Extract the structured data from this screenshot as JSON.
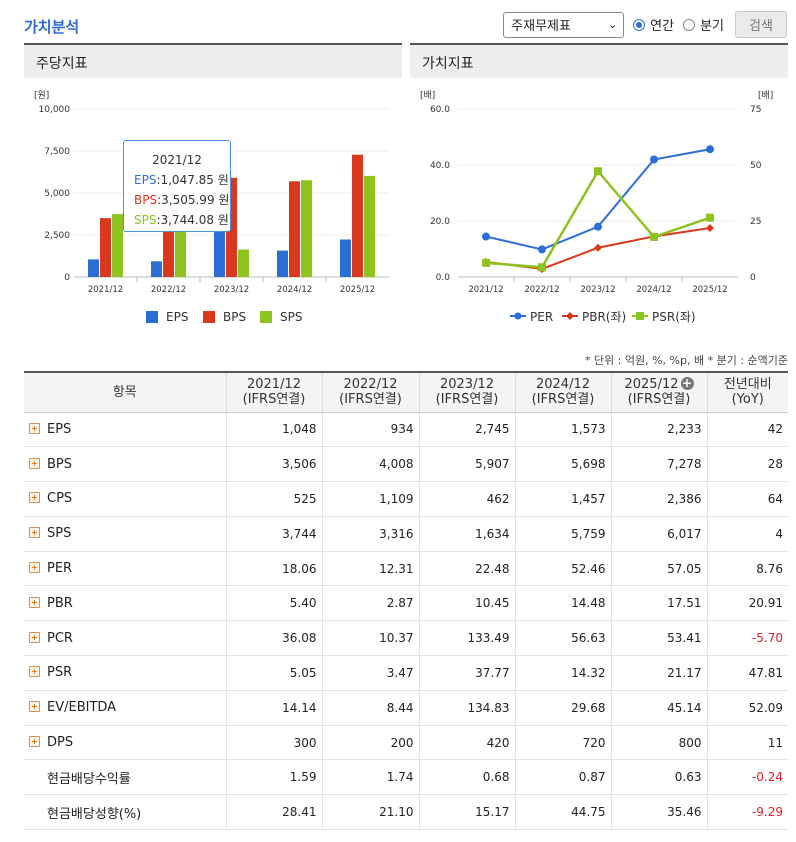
{
  "title": "가치분석",
  "controls": {
    "select_value": "주재무제표",
    "radio_annual": "연간",
    "radio_quarter": "분기",
    "search_label": "검색"
  },
  "panels": {
    "left_title": "주당지표",
    "right_title": "가치지표"
  },
  "tooltip": {
    "period": "2021/12",
    "eps_label": "EPS",
    "eps_value": ":1,047.85 원",
    "bps_label": "BPS",
    "bps_value": ":3,505.99 원",
    "sps_label": "SPS",
    "sps_value": ":3,744.08 원"
  },
  "colors": {
    "eps": "#2b6fd6",
    "bps": "#d9381e",
    "sps": "#8dc21f",
    "per": "#2b6fd6",
    "pbr": "#d9381e",
    "psr": "#8dc21f"
  },
  "chart_data": [
    {
      "type": "bar",
      "ylabel": "[원]",
      "ylim": [
        0,
        10000
      ],
      "yticks": [
        "0",
        "2,500",
        "5,000",
        "7,500",
        "10,000"
      ],
      "categories": [
        "2021/12",
        "2022/12",
        "2023/12",
        "2024/12",
        "2025/12"
      ],
      "series": [
        {
          "name": "EPS",
          "values": [
            1048,
            934,
            2745,
            1573,
            2233
          ]
        },
        {
          "name": "BPS",
          "values": [
            3506,
            4008,
            5907,
            5698,
            7278
          ]
        },
        {
          "name": "SPS",
          "values": [
            3744,
            3316,
            1634,
            5759,
            6017
          ]
        }
      ],
      "legend": "bottom"
    },
    {
      "type": "line",
      "ylabel_left": "[배]",
      "ylabel_right": "[배]",
      "ylim_left": [
        0,
        60
      ],
      "ylim_right": [
        0,
        75
      ],
      "yticks_left": [
        "0.0",
        "20.0",
        "40.0",
        "60.0"
      ],
      "yticks_right": [
        "0",
        "25",
        "50",
        "75"
      ],
      "categories": [
        "2021/12",
        "2022/12",
        "2023/12",
        "2024/12",
        "2025/12"
      ],
      "series": [
        {
          "name": "PER",
          "axis": "right",
          "values": [
            18.06,
            12.31,
            22.48,
            52.46,
            57.05
          ]
        },
        {
          "name": "PBR(좌)",
          "axis": "left",
          "values": [
            5.4,
            2.87,
            10.45,
            14.48,
            17.51
          ]
        },
        {
          "name": "PSR(좌)",
          "axis": "left",
          "values": [
            5.05,
            3.47,
            37.77,
            14.32,
            21.17
          ]
        }
      ],
      "legend": "bottom"
    }
  ],
  "unit_note": "* 단위 : 억원, %, %p, 배    * 분기 : 순액기준",
  "table": {
    "headers": [
      {
        "top": "항목",
        "bottom": ""
      },
      {
        "top": "2021/12",
        "bottom": "(IFRS연결)"
      },
      {
        "top": "2022/12",
        "bottom": "(IFRS연결)"
      },
      {
        "top": "2023/12",
        "bottom": "(IFRS연결)"
      },
      {
        "top": "2024/12",
        "bottom": "(IFRS연결)"
      },
      {
        "top": "2025/12",
        "bottom": "(IFRS연결)"
      },
      {
        "top": "전년대비",
        "bottom": "(YoY)"
      }
    ],
    "rows": [
      {
        "label": "EPS",
        "expand": true,
        "values": [
          "1,048",
          "934",
          "2,745",
          "1,573",
          "2,233",
          "42"
        ]
      },
      {
        "label": "BPS",
        "expand": true,
        "values": [
          "3,506",
          "4,008",
          "5,907",
          "5,698",
          "7,278",
          "28"
        ]
      },
      {
        "label": "CPS",
        "expand": true,
        "values": [
          "525",
          "1,109",
          "462",
          "1,457",
          "2,386",
          "64"
        ]
      },
      {
        "label": "SPS",
        "expand": true,
        "values": [
          "3,744",
          "3,316",
          "1,634",
          "5,759",
          "6,017",
          "4"
        ]
      },
      {
        "label": "PER",
        "expand": true,
        "values": [
          "18.06",
          "12.31",
          "22.48",
          "52.46",
          "57.05",
          "8.76"
        ]
      },
      {
        "label": "PBR",
        "expand": true,
        "values": [
          "5.40",
          "2.87",
          "10.45",
          "14.48",
          "17.51",
          "20.91"
        ]
      },
      {
        "label": "PCR",
        "expand": true,
        "values": [
          "36.08",
          "10.37",
          "133.49",
          "56.63",
          "53.41",
          "-5.70"
        ]
      },
      {
        "label": "PSR",
        "expand": true,
        "values": [
          "5.05",
          "3.47",
          "37.77",
          "14.32",
          "21.17",
          "47.81"
        ]
      },
      {
        "label": "EV/EBITDA",
        "expand": true,
        "values": [
          "14.14",
          "8.44",
          "134.83",
          "29.68",
          "45.14",
          "52.09"
        ]
      },
      {
        "label": "DPS",
        "expand": true,
        "values": [
          "300",
          "200",
          "420",
          "720",
          "800",
          "11"
        ]
      },
      {
        "label": "현금배당수익률",
        "expand": false,
        "values": [
          "1.59",
          "1.74",
          "0.68",
          "0.87",
          "0.63",
          "-0.24"
        ]
      },
      {
        "label": "현금배당성향(%)",
        "expand": false,
        "values": [
          "28.41",
          "21.10",
          "15.17",
          "44.75",
          "35.46",
          "-9.29"
        ]
      }
    ]
  }
}
